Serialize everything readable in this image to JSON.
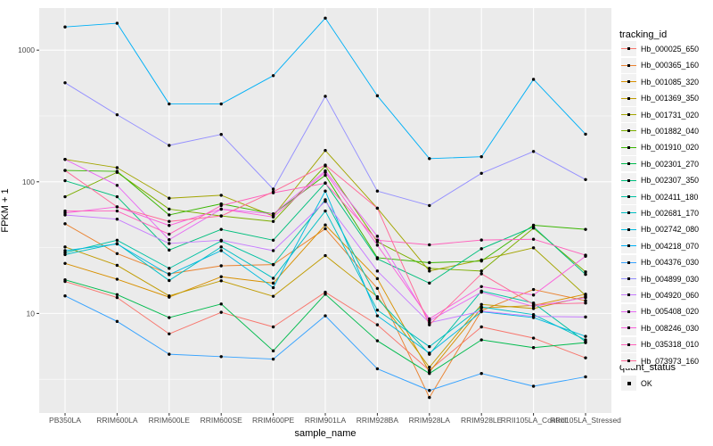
{
  "figure": {
    "background": "#FFFFFF",
    "panel_background": "#EBEBEB",
    "grid_color": "#FFFFFF",
    "tick_color": "#333333",
    "axis_text_color": "#4D4D4D",
    "point_color": "#000000"
  },
  "axes": {
    "x": {
      "title": "sample_name"
    },
    "y": {
      "title": "FPKM + 1",
      "tick_labels": [
        "10",
        "100",
        "1000"
      ],
      "tick_values": [
        10,
        100,
        1000
      ],
      "minor_values": [
        3.162,
        31.62,
        316.2
      ]
    }
  },
  "legend": {
    "tracking_title": "tracking_id",
    "quant_title": "quant_status",
    "quant_items": [
      {
        "label": "OK"
      }
    ]
  },
  "chart_data": {
    "type": "line",
    "title": "",
    "xlabel": "sample_name",
    "ylabel": "FPKM + 1",
    "y_scale": "log10",
    "ylim": [
      1.75,
      2100
    ],
    "grid": true,
    "legend_position": "right",
    "categories": [
      "PB350LA",
      "RRIM600LA",
      "RRIM600LE",
      "RRIM600SE",
      "RRIM600PE",
      "RRIM901LA",
      "RRIM928BA",
      "RRIM928LA",
      "RRIM928LE",
      "RRII105LA_Control",
      "RRII105LA_Stressed"
    ],
    "series": [
      {
        "name": "Hb_000025_650",
        "color": "#F8766D",
        "values": [
          17.5,
          13.2,
          7.0,
          10.2,
          7.9,
          14.5,
          8.2,
          3.7,
          7.9,
          6.5,
          4.6
        ]
      },
      {
        "name": "Hb_000365_160",
        "color": "#EA8331",
        "values": [
          48,
          28.5,
          20,
          23,
          23.5,
          44,
          15.5,
          2.3,
          10.5,
          15.2,
          12.5
        ]
      },
      {
        "name": "Hb_001085_320",
        "color": "#D89000",
        "values": [
          24,
          18.2,
          13.3,
          19,
          17,
          47,
          18.4,
          3.6,
          11,
          11.5,
          14
        ]
      },
      {
        "name": "Hb_001369_350",
        "color": "#C09B00",
        "values": [
          32,
          23.2,
          13.6,
          17.7,
          13.5,
          27.5,
          13.4,
          3.9,
          11.7,
          10.9,
          13.4
        ]
      },
      {
        "name": "Hb_001731_020",
        "color": "#A3A500",
        "values": [
          148,
          128,
          75,
          79,
          55,
          173,
          63,
          21,
          25.5,
          31.5,
          13.7
        ]
      },
      {
        "name": "Hb_001882_040",
        "color": "#7CAE00",
        "values": [
          77,
          118,
          62,
          55,
          50,
          132,
          35,
          22,
          21,
          44.5,
          20.7
        ]
      },
      {
        "name": "Hb_001910_020",
        "color": "#39B600",
        "values": [
          122,
          120,
          56,
          68,
          57,
          112,
          26.5,
          24.3,
          25,
          46.8,
          43.5
        ]
      },
      {
        "name": "Hb_002301_270",
        "color": "#00BB4E",
        "values": [
          18,
          13.9,
          9.3,
          11.8,
          5.2,
          14.0,
          6.2,
          3.5,
          6.3,
          5.5,
          6.0
        ]
      },
      {
        "name": "Hb_002307_350",
        "color": "#00BF7D",
        "values": [
          102,
          77,
          30.3,
          43.5,
          36,
          98,
          26,
          17,
          31,
          45.5,
          19.8
        ]
      },
      {
        "name": "Hb_002411_180",
        "color": "#00C1A3",
        "values": [
          29,
          36,
          22,
          35.5,
          23.5,
          73,
          13,
          4.9,
          14.8,
          12,
          6.1
        ]
      },
      {
        "name": "Hb_002681_170",
        "color": "#00BFC4",
        "values": [
          28,
          34,
          17.8,
          32,
          18.5,
          60,
          10.6,
          5.6,
          11.2,
          9.8,
          6.3
        ]
      },
      {
        "name": "Hb_002742_080",
        "color": "#00BAE0",
        "values": [
          30,
          33.7,
          19.7,
          30,
          15.7,
          85,
          9.6,
          5.0,
          10.3,
          9.3,
          6.7
        ]
      },
      {
        "name": "Hb_004218_070",
        "color": "#00B0F6",
        "values": [
          1500,
          1600,
          390,
          390,
          640,
          1750,
          450,
          150,
          155,
          600,
          230
        ]
      },
      {
        "name": "Hb_004376_030",
        "color": "#35A2FF",
        "values": [
          13.6,
          8.7,
          4.9,
          4.7,
          4.5,
          9.6,
          3.8,
          2.6,
          3.5,
          2.8,
          3.3
        ]
      },
      {
        "name": "Hb_004899_030",
        "color": "#9590FF",
        "values": [
          565,
          323,
          189,
          229,
          88,
          446,
          85,
          66,
          116,
          170,
          104
        ]
      },
      {
        "name": "Hb_004920_060",
        "color": "#C77CFF",
        "values": [
          56,
          52,
          34,
          36,
          30,
          71,
          21,
          8.5,
          10.4,
          9.5,
          9.4
        ]
      },
      {
        "name": "Hb_005408_020",
        "color": "#E76BF3",
        "values": [
          148,
          94,
          36.3,
          62,
          57,
          121,
          38.6,
          8.8,
          14.5,
          11.3,
          13.2
        ]
      },
      {
        "name": "Hb_008246_030",
        "color": "#FA62DB",
        "values": [
          58,
          64.5,
          46.6,
          62,
          54,
          118,
          33,
          9.1,
          16,
          13.8,
          27.2
        ]
      },
      {
        "name": "Hb_035318_010",
        "color": "#FF62BC",
        "values": [
          60,
          60,
          40,
          66,
          82.5,
          97.5,
          36,
          33.2,
          36.1,
          36.6,
          27.7
        ]
      },
      {
        "name": "Hb_073973_160",
        "color": "#FF6A98",
        "values": [
          122,
          64.5,
          50,
          55,
          84,
          134,
          63,
          8.2,
          20,
          11.7,
          12
        ]
      }
    ]
  }
}
